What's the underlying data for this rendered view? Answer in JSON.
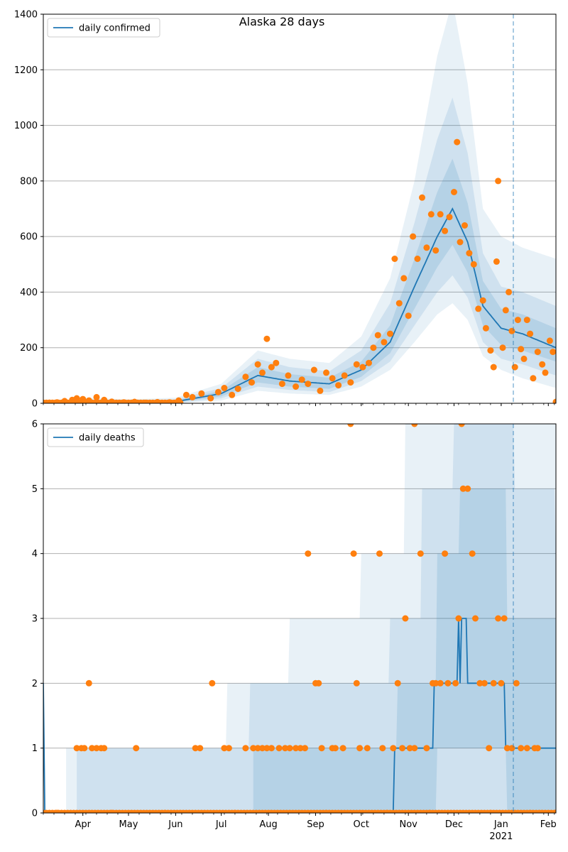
{
  "title": "Alaska 28 days",
  "colors": {
    "line": "#1f77b4",
    "points": "#ff7f0e",
    "band": "#1f77b4",
    "grid": "#b0b0b0",
    "forecast_line": "#1f77b4"
  },
  "chart_data": [
    {
      "type": "line",
      "legend": "daily confirmed",
      "legend_position": "top-left",
      "grid": "horizontal",
      "x_range": [
        "2020-03-06",
        "2021-02-06"
      ],
      "forecast_start": "2021-01-09",
      "ylim": [
        0,
        1400
      ],
      "yticks": [
        0,
        200,
        400,
        600,
        800,
        1000,
        1200,
        1400
      ],
      "xtick_labels": [
        "Apr",
        "May",
        "Jun",
        "Jul",
        "Aug",
        "Sep",
        "Oct",
        "Nov",
        "Dec",
        "Jan",
        "Feb"
      ],
      "xtick_dates": [
        "2020-04-01",
        "2020-05-01",
        "2020-06-01",
        "2020-07-01",
        "2020-08-01",
        "2020-09-01",
        "2020-10-01",
        "2020-11-01",
        "2020-12-01",
        "2021-01-01",
        "2021-02-01"
      ],
      "year_label": "2021",
      "series_anchors": [
        {
          "date": "2020-03-06",
          "line": 0,
          "b1": [
            0,
            0
          ],
          "b2": [
            0,
            0
          ],
          "b3": [
            0,
            0
          ]
        },
        {
          "date": "2020-04-01",
          "line": 8,
          "b1": [
            5,
            12
          ],
          "b2": [
            3,
            15
          ],
          "b3": [
            1,
            20
          ]
        },
        {
          "date": "2020-05-01",
          "line": 4,
          "b1": [
            2,
            7
          ],
          "b2": [
            1,
            10
          ],
          "b3": [
            0,
            14
          ]
        },
        {
          "date": "2020-06-01",
          "line": 6,
          "b1": [
            3,
            10
          ],
          "b2": [
            1,
            14
          ],
          "b3": [
            0,
            20
          ]
        },
        {
          "date": "2020-07-01",
          "line": 35,
          "b1": [
            25,
            45
          ],
          "b2": [
            18,
            55
          ],
          "b3": [
            10,
            70
          ]
        },
        {
          "date": "2020-07-25",
          "line": 100,
          "b1": [
            75,
            130
          ],
          "b2": [
            60,
            160
          ],
          "b3": [
            45,
            190
          ]
        },
        {
          "date": "2020-08-15",
          "line": 80,
          "b1": [
            60,
            105
          ],
          "b2": [
            48,
            130
          ],
          "b3": [
            35,
            160
          ]
        },
        {
          "date": "2020-09-10",
          "line": 70,
          "b1": [
            52,
            92
          ],
          "b2": [
            40,
            115
          ],
          "b3": [
            30,
            145
          ]
        },
        {
          "date": "2020-10-01",
          "line": 120,
          "b1": [
            95,
            150
          ],
          "b2": [
            80,
            190
          ],
          "b3": [
            60,
            240
          ]
        },
        {
          "date": "2020-10-20",
          "line": 220,
          "b1": [
            180,
            280
          ],
          "b2": [
            150,
            360
          ],
          "b3": [
            120,
            450
          ]
        },
        {
          "date": "2020-11-05",
          "line": 420,
          "b1": [
            340,
            520
          ],
          "b2": [
            280,
            650
          ],
          "b3": [
            220,
            800
          ]
        },
        {
          "date": "2020-11-20",
          "line": 600,
          "b1": [
            490,
            760
          ],
          "b2": [
            400,
            950
          ],
          "b3": [
            320,
            1250
          ]
        },
        {
          "date": "2020-11-30",
          "line": 700,
          "b1": [
            570,
            880
          ],
          "b2": [
            460,
            1100
          ],
          "b3": [
            360,
            1450
          ]
        },
        {
          "date": "2020-12-10",
          "line": 580,
          "b1": [
            470,
            720
          ],
          "b2": [
            380,
            900
          ],
          "b3": [
            300,
            1150
          ]
        },
        {
          "date": "2020-12-20",
          "line": 350,
          "b1": [
            280,
            440
          ],
          "b2": [
            220,
            540
          ],
          "b3": [
            170,
            700
          ]
        },
        {
          "date": "2021-01-01",
          "line": 270,
          "b1": [
            210,
            340
          ],
          "b2": [
            160,
            420
          ],
          "b3": [
            120,
            600
          ]
        },
        {
          "date": "2021-01-15",
          "line": 250,
          "b1": [
            190,
            320
          ],
          "b2": [
            140,
            400
          ],
          "b3": [
            90,
            560
          ]
        },
        {
          "date": "2021-02-06",
          "line": 200,
          "b1": [
            150,
            270
          ],
          "b2": [
            100,
            350
          ],
          "b3": [
            55,
            520
          ]
        }
      ],
      "observed": [
        [
          "2020-03-10",
          2
        ],
        [
          "2020-03-15",
          3
        ],
        [
          "2020-03-20",
          8
        ],
        [
          "2020-03-25",
          12
        ],
        [
          "2020-03-28",
          18
        ],
        [
          "2020-04-01",
          15
        ],
        [
          "2020-04-05",
          10
        ],
        [
          "2020-04-10",
          22
        ],
        [
          "2020-04-15",
          12
        ],
        [
          "2020-04-20",
          6
        ],
        [
          "2020-04-28",
          3
        ],
        [
          "2020-05-05",
          5
        ],
        [
          "2020-05-12",
          2
        ],
        [
          "2020-05-20",
          4
        ],
        [
          "2020-05-28",
          3
        ],
        [
          "2020-06-03",
          10
        ],
        [
          "2020-06-08",
          30
        ],
        [
          "2020-06-12",
          22
        ],
        [
          "2020-06-18",
          35
        ],
        [
          "2020-06-24",
          18
        ],
        [
          "2020-06-29",
          40
        ],
        [
          "2020-07-03",
          55
        ],
        [
          "2020-07-08",
          30
        ],
        [
          "2020-07-12",
          52
        ],
        [
          "2020-07-17",
          95
        ],
        [
          "2020-07-21",
          75
        ],
        [
          "2020-07-25",
          140
        ],
        [
          "2020-07-28",
          110
        ],
        [
          "2020-07-31",
          232
        ],
        [
          "2020-08-03",
          130
        ],
        [
          "2020-08-06",
          145
        ],
        [
          "2020-08-10",
          70
        ],
        [
          "2020-08-14",
          100
        ],
        [
          "2020-08-19",
          60
        ],
        [
          "2020-08-23",
          85
        ],
        [
          "2020-08-27",
          70
        ],
        [
          "2020-08-31",
          120
        ],
        [
          "2020-09-04",
          45
        ],
        [
          "2020-09-08",
          110
        ],
        [
          "2020-09-12",
          90
        ],
        [
          "2020-09-16",
          65
        ],
        [
          "2020-09-20",
          100
        ],
        [
          "2020-09-24",
          75
        ],
        [
          "2020-09-28",
          140
        ],
        [
          "2020-10-02",
          130
        ],
        [
          "2020-10-06",
          145
        ],
        [
          "2020-10-09",
          200
        ],
        [
          "2020-10-12",
          245
        ],
        [
          "2020-10-16",
          220
        ],
        [
          "2020-10-20",
          250
        ],
        [
          "2020-10-23",
          520
        ],
        [
          "2020-10-26",
          360
        ],
        [
          "2020-10-29",
          450
        ],
        [
          "2020-11-01",
          315
        ],
        [
          "2020-11-04",
          600
        ],
        [
          "2020-11-07",
          520
        ],
        [
          "2020-11-10",
          740
        ],
        [
          "2020-11-13",
          560
        ],
        [
          "2020-11-16",
          680
        ],
        [
          "2020-11-19",
          550
        ],
        [
          "2020-11-22",
          680
        ],
        [
          "2020-11-25",
          620
        ],
        [
          "2020-11-28",
          670
        ],
        [
          "2020-12-01",
          760
        ],
        [
          "2020-12-03",
          940
        ],
        [
          "2020-12-05",
          580
        ],
        [
          "2020-12-08",
          640
        ],
        [
          "2020-12-11",
          540
        ],
        [
          "2020-12-14",
          500
        ],
        [
          "2020-12-17",
          340
        ],
        [
          "2020-12-20",
          370
        ],
        [
          "2020-12-22",
          270
        ],
        [
          "2020-12-25",
          190
        ],
        [
          "2020-12-27",
          130
        ],
        [
          "2020-12-29",
          510
        ],
        [
          "2020-12-30",
          800
        ],
        [
          "2021-01-02",
          200
        ],
        [
          "2021-01-04",
          335
        ],
        [
          "2021-01-06",
          400
        ],
        [
          "2021-01-08",
          260
        ],
        [
          "2021-01-10",
          130
        ],
        [
          "2021-01-12",
          300
        ],
        [
          "2021-01-14",
          195
        ],
        [
          "2021-01-16",
          160
        ],
        [
          "2021-01-18",
          300
        ],
        [
          "2021-01-20",
          250
        ],
        [
          "2021-01-22",
          90
        ],
        [
          "2021-01-25",
          185
        ],
        [
          "2021-01-28",
          140
        ],
        [
          "2021-01-30",
          110
        ],
        [
          "2021-02-02",
          225
        ],
        [
          "2021-02-04",
          185
        ],
        [
          "2021-02-06",
          5
        ]
      ]
    },
    {
      "type": "line",
      "legend": "daily deaths",
      "legend_position": "top-left",
      "grid": "horizontal",
      "x_range": [
        "2020-03-06",
        "2021-02-06"
      ],
      "forecast_start": "2021-01-09",
      "ylim": [
        0,
        6
      ],
      "yticks": [
        0,
        1,
        2,
        3,
        4,
        5,
        6
      ],
      "xtick_labels": [
        "Apr",
        "May",
        "Jun",
        "Jul",
        "Aug",
        "Sep",
        "Oct",
        "Nov",
        "Dec",
        "Jan",
        "Feb"
      ],
      "xtick_dates": [
        "2020-04-01",
        "2020-05-01",
        "2020-06-01",
        "2020-07-01",
        "2020-08-01",
        "2020-09-01",
        "2020-10-01",
        "2020-11-01",
        "2020-12-01",
        "2021-01-01",
        "2021-02-01"
      ],
      "year_label": "2021",
      "line_steps": [
        [
          "2020-03-06",
          2
        ],
        [
          "2020-03-07",
          0
        ],
        [
          "2020-10-22",
          0
        ],
        [
          "2020-10-23",
          1
        ],
        [
          "2020-11-17",
          1
        ],
        [
          "2020-11-18",
          2
        ],
        [
          "2020-12-03",
          2
        ],
        [
          "2020-12-04",
          3
        ],
        [
          "2020-12-05",
          2
        ],
        [
          "2020-12-06",
          3
        ],
        [
          "2020-12-09",
          3
        ],
        [
          "2020-12-10",
          2
        ],
        [
          "2021-01-03",
          2
        ],
        [
          "2021-01-04",
          1
        ],
        [
          "2021-02-06",
          1
        ]
      ],
      "band_light": [
        [
          "2020-03-21",
          0,
          1
        ],
        [
          "2020-06-08",
          0,
          1
        ],
        [
          "2020-07-05",
          0,
          2
        ],
        [
          "2020-08-15",
          0,
          3
        ],
        [
          "2020-10-01",
          0,
          4
        ],
        [
          "2020-10-30",
          0,
          6
        ],
        [
          "2021-02-06",
          0,
          6
        ]
      ],
      "band_mid": [
        [
          "2020-03-28",
          0,
          1
        ],
        [
          "2020-04-28",
          0,
          1
        ],
        [
          "2020-06-10",
          0,
          1
        ],
        [
          "2020-07-20",
          0,
          2
        ],
        [
          "2020-10-20",
          0,
          3
        ],
        [
          "2020-11-10",
          0,
          5
        ],
        [
          "2020-12-01",
          0,
          6
        ],
        [
          "2021-01-10",
          0,
          5
        ],
        [
          "2021-02-06",
          0,
          4
        ]
      ],
      "band_dark": [
        [
          "2020-07-22",
          0,
          1
        ],
        [
          "2020-10-25",
          0,
          2
        ],
        [
          "2020-11-20",
          1,
          4
        ],
        [
          "2020-12-05",
          1,
          5
        ],
        [
          "2021-01-05",
          0,
          3
        ],
        [
          "2021-02-06",
          0,
          3
        ]
      ],
      "observed": [
        [
          "2020-03-28",
          1
        ],
        [
          "2020-03-31",
          1
        ],
        [
          "2020-04-02",
          1
        ],
        [
          "2020-04-05",
          2
        ],
        [
          "2020-04-07",
          1
        ],
        [
          "2020-04-10",
          1
        ],
        [
          "2020-04-13",
          1
        ],
        [
          "2020-04-15",
          1
        ],
        [
          "2020-05-06",
          1
        ],
        [
          "2020-06-14",
          1
        ],
        [
          "2020-06-17",
          1
        ],
        [
          "2020-06-25",
          2
        ],
        [
          "2020-07-03",
          1
        ],
        [
          "2020-07-06",
          1
        ],
        [
          "2020-07-17",
          1
        ],
        [
          "2020-07-22",
          1
        ],
        [
          "2020-07-25",
          1
        ],
        [
          "2020-07-28",
          1
        ],
        [
          "2020-07-31",
          1
        ],
        [
          "2020-08-03",
          1
        ],
        [
          "2020-08-08",
          1
        ],
        [
          "2020-08-12",
          1
        ],
        [
          "2020-08-15",
          1
        ],
        [
          "2020-08-19",
          1
        ],
        [
          "2020-08-22",
          1
        ],
        [
          "2020-08-25",
          1
        ],
        [
          "2020-08-27",
          4
        ],
        [
          "2020-09-01",
          2
        ],
        [
          "2020-09-03",
          2
        ],
        [
          "2020-09-05",
          1
        ],
        [
          "2020-09-12",
          1
        ],
        [
          "2020-09-14",
          1
        ],
        [
          "2020-09-19",
          1
        ],
        [
          "2020-09-24",
          6
        ],
        [
          "2020-09-26",
          4
        ],
        [
          "2020-09-28",
          2
        ],
        [
          "2020-09-30",
          1
        ],
        [
          "2020-10-05",
          1
        ],
        [
          "2020-10-13",
          4
        ],
        [
          "2020-10-15",
          1
        ],
        [
          "2020-10-22",
          1
        ],
        [
          "2020-10-25",
          2
        ],
        [
          "2020-10-28",
          1
        ],
        [
          "2020-10-30",
          3
        ],
        [
          "2020-11-02",
          1
        ],
        [
          "2020-11-05",
          1
        ],
        [
          "2020-11-09",
          4
        ],
        [
          "2020-11-13",
          1
        ],
        [
          "2020-11-17",
          2
        ],
        [
          "2020-11-19",
          2
        ],
        [
          "2020-11-22",
          2
        ],
        [
          "2020-11-25",
          4
        ],
        [
          "2020-11-27",
          2
        ],
        [
          "2020-12-02",
          2
        ],
        [
          "2020-12-04",
          3
        ],
        [
          "2020-12-07",
          5
        ],
        [
          "2020-12-10",
          5
        ],
        [
          "2020-12-13",
          4
        ],
        [
          "2020-12-15",
          3
        ],
        [
          "2020-12-18",
          2
        ],
        [
          "2020-12-21",
          2
        ],
        [
          "2020-12-24",
          1
        ],
        [
          "2020-12-27",
          2
        ],
        [
          "2020-12-30",
          3
        ],
        [
          "2021-01-01",
          2
        ],
        [
          "2021-01-03",
          3
        ],
        [
          "2021-01-05",
          1
        ],
        [
          "2021-01-08",
          1
        ],
        [
          "2021-01-11",
          2
        ],
        [
          "2021-01-14",
          1
        ],
        [
          "2021-01-18",
          1
        ],
        [
          "2021-01-23",
          1
        ],
        [
          "2021-01-25",
          1
        ],
        [
          "2021-02-06",
          0
        ],
        [
          "2021-01-20",
          0
        ],
        [
          "2020-12-25",
          0
        ],
        [
          "2020-11-15",
          0
        ],
        [
          "2020-10-18",
          0
        ],
        [
          "2020-09-08",
          0
        ],
        [
          "2020-07-10",
          0
        ],
        [
          "2020-05-25",
          0
        ],
        [
          "2020-04-20",
          0
        ],
        [
          "2020-03-15",
          0
        ],
        [
          "2020-12-06",
          6
        ],
        [
          "2020-11-05",
          6
        ]
      ]
    }
  ]
}
